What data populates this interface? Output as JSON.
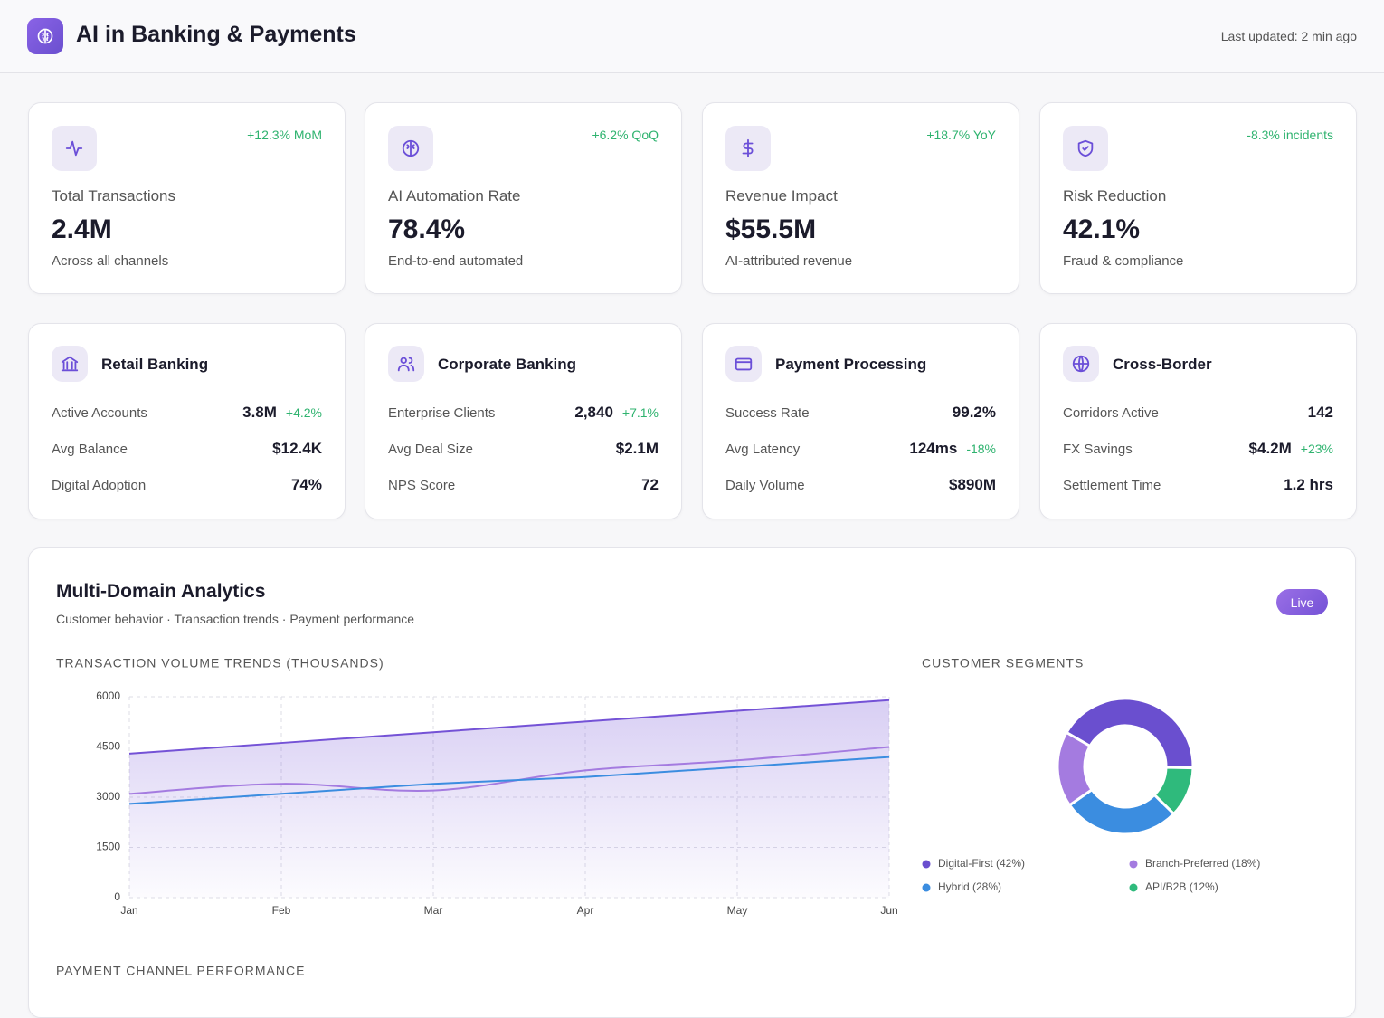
{
  "header": {
    "title": "AI in Banking & Payments",
    "updated": "Last updated: 2 min ago"
  },
  "kpis": [
    {
      "change": "+12.3% MoM",
      "label": "Total Transactions",
      "value": "2.4M",
      "note": "Across all channels"
    },
    {
      "change": "+6.2% QoQ",
      "label": "AI Automation Rate",
      "value": "78.4%",
      "note": "End-to-end automated"
    },
    {
      "change": "+18.7% YoY",
      "label": "Revenue Impact",
      "value": "$55.5M",
      "note": "AI-attributed revenue"
    },
    {
      "change": "-8.3% incidents",
      "label": "Risk Reduction",
      "value": "42.1%",
      "note": "Fraud & compliance"
    }
  ],
  "domains": [
    {
      "title": "Retail Banking",
      "rows": [
        {
          "label": "Active Accounts",
          "value": "3.8M",
          "change": "+4.2%"
        },
        {
          "label": "Avg Balance",
          "value": "$12.4K"
        },
        {
          "label": "Digital Adoption",
          "value": "74%"
        }
      ]
    },
    {
      "title": "Corporate Banking",
      "rows": [
        {
          "label": "Enterprise Clients",
          "value": "2,840",
          "change": "+7.1%"
        },
        {
          "label": "Avg Deal Size",
          "value": "$2.1M"
        },
        {
          "label": "NPS Score",
          "value": "72"
        }
      ]
    },
    {
      "title": "Payment Processing",
      "rows": [
        {
          "label": "Success Rate",
          "value": "99.2%"
        },
        {
          "label": "Avg Latency",
          "value": "124ms",
          "change": "-18%"
        },
        {
          "label": "Daily Volume",
          "value": "$890M"
        }
      ]
    },
    {
      "title": "Cross-Border",
      "rows": [
        {
          "label": "Corridors Active",
          "value": "142"
        },
        {
          "label": "FX Savings",
          "value": "$4.2M",
          "change": "+23%"
        },
        {
          "label": "Settlement Time",
          "value": "1.2 hrs"
        }
      ]
    }
  ],
  "analytics": {
    "title": "Multi-Domain Analytics",
    "subtitle": "Customer behavior · Transaction trends · Payment performance",
    "badge": "Live",
    "next_section": "PAYMENT CHANNEL PERFORMANCE"
  },
  "chart_data": [
    {
      "type": "line",
      "title": "TRANSACTION VOLUME TRENDS (THOUSANDS)",
      "categories": [
        "Jan",
        "Feb",
        "Mar",
        "Apr",
        "May",
        "Jun"
      ],
      "series": [
        {
          "color": "#7452d6",
          "area": true,
          "values": [
            4300,
            4620,
            4940,
            5260,
            5580,
            5900
          ]
        },
        {
          "color": "#a47be0",
          "smooth": true,
          "values": [
            3100,
            3400,
            3200,
            3800,
            4100,
            4500
          ]
        },
        {
          "color": "#3b8de0",
          "values": [
            2800,
            3100,
            3400,
            3600,
            3900,
            4200
          ]
        }
      ],
      "ylim": [
        0,
        6000
      ],
      "yticks": [
        0,
        1500,
        3000,
        4500,
        6000
      ],
      "grid": true
    },
    {
      "type": "pie",
      "title": "CUSTOMER SEGMENTS",
      "donut": true,
      "categories": [
        "Digital-First (42%)",
        "Branch-Preferred (18%)",
        "Hybrid (28%)",
        "API/B2B (12%)"
      ],
      "values": [
        42,
        18,
        28,
        12
      ],
      "colors": [
        "#6a4fcf",
        "#a47be0",
        "#3b8de0",
        "#2fba7c"
      ]
    }
  ]
}
